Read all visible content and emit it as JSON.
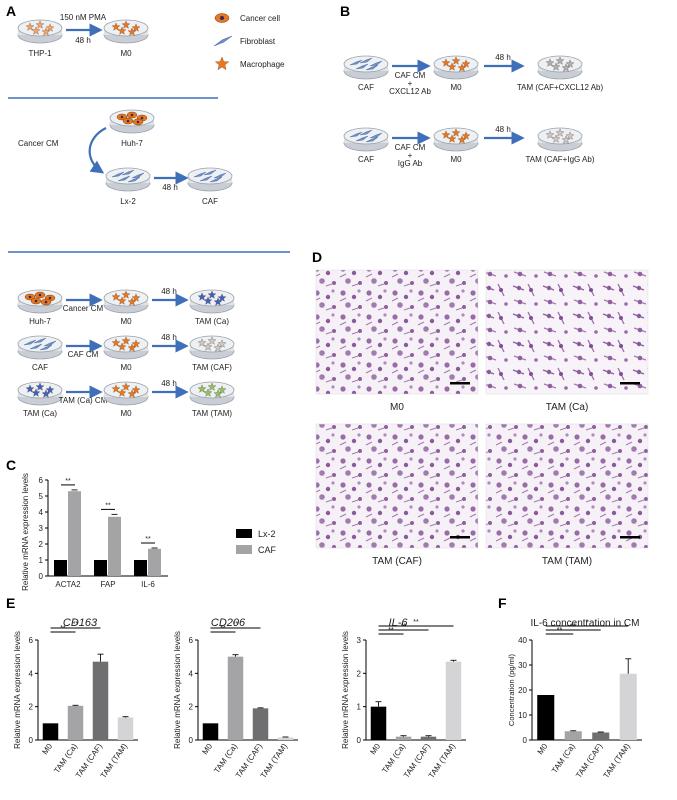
{
  "panels": [
    "A",
    "B",
    "C",
    "D",
    "E",
    "F"
  ],
  "legend_A": {
    "cancer": "Cancer cell",
    "fibro": "Fibroblast",
    "macro": "Macrophage"
  },
  "panelA": {
    "row1": {
      "from": "THP-1",
      "to": "M0",
      "arrow_top": "150 nM PMA",
      "arrow_bottom": "48 h"
    },
    "row2": {
      "top_dish": "Huh-7",
      "curve_label": "Cancer CM",
      "from": "Lx-2",
      "to": "CAF",
      "arrow_bottom": "48 h"
    },
    "rows": [
      {
        "src": "Huh-7",
        "cm": "Cancer CM",
        "mid": "M0",
        "time": "48 h",
        "out": "TAM (Ca)"
      },
      {
        "src": "CAF",
        "cm": "CAF CM",
        "mid": "M0",
        "time": "48 h",
        "out": "TAM (CAF)"
      },
      {
        "src": "TAM (Ca)",
        "cm": "TAM (Ca) CM",
        "mid": "M0",
        "time": "48 h",
        "out": "TAM (TAM)"
      }
    ]
  },
  "panelB": {
    "rows": [
      {
        "src": "CAF",
        "cm_lines": [
          "CAF CM",
          "+",
          "CXCL12 Ab"
        ],
        "mid": "M0",
        "time": "48 h",
        "out": "TAM (CAF+CXCL12 Ab)"
      },
      {
        "src": "CAF",
        "cm_lines": [
          "CAF CM",
          "+",
          "IgG Ab"
        ],
        "mid": "M0",
        "time": "48 h",
        "out": "TAM (CAF+IgG Ab)"
      }
    ]
  },
  "panelD": {
    "images": [
      "M0",
      "TAM (Ca)",
      "TAM (CAF)",
      "TAM (TAM)"
    ]
  },
  "colors": {
    "black": "#000000",
    "gray1": "#a7a7a9",
    "gray2": "#6d6d6f",
    "gray3": "#d0d0d2",
    "blue": "#3f6fb8",
    "orange": "#e87722",
    "stain": "#8f5f9e"
  },
  "chart_data": [
    {
      "id": "C",
      "type": "bar",
      "ylabel": "Relative mRNA expression levels",
      "categories": [
        "ACTA2",
        "FAP",
        "IL-6"
      ],
      "series": [
        {
          "name": "Lx-2",
          "values": [
            1,
            1,
            1
          ]
        },
        {
          "name": "CAF",
          "values": [
            5.3,
            3.7,
            1.7
          ]
        }
      ],
      "errors": [
        [
          0,
          0,
          0
        ],
        [
          0.08,
          0.15,
          0.05
        ]
      ],
      "ylim": [
        0,
        6
      ],
      "yticks": [
        0,
        1,
        2,
        3,
        4,
        5,
        6
      ],
      "significance": [
        "**",
        "**",
        "**"
      ],
      "legend": "right"
    },
    {
      "id": "E1",
      "type": "bar",
      "title": "CD163",
      "ylabel": "Relative mRNA expression levels",
      "categories": [
        "M0",
        "TAM (Ca)",
        "TAM (CAF)",
        "TAM (TAM)"
      ],
      "values": [
        1,
        2.05,
        4.7,
        1.35
      ],
      "errors": [
        0,
        0.03,
        0.45,
        0.05
      ],
      "ylim": [
        0,
        6
      ],
      "yticks": [
        0,
        2,
        4,
        6
      ],
      "significance": [
        {
          "a": 0,
          "b": 1,
          "label": "**"
        },
        {
          "a": 0,
          "b": 2,
          "label": "**"
        }
      ]
    },
    {
      "id": "E2",
      "type": "bar",
      "title": "CD206",
      "ylabel": "Relative mRNA expression levels",
      "categories": [
        "M0",
        "TAM (Ca)",
        "TAM (CAF)",
        "TAM (TAM)"
      ],
      "values": [
        1,
        5,
        1.9,
        0.15
      ],
      "errors": [
        0,
        0.12,
        0.03,
        0.03
      ],
      "ylim": [
        0,
        6
      ],
      "yticks": [
        0,
        2,
        4,
        6
      ],
      "significance": [
        {
          "a": 0,
          "b": 1,
          "label": "**"
        },
        {
          "a": 0,
          "b": 2,
          "label": "**"
        }
      ]
    },
    {
      "id": "E3",
      "type": "bar",
      "title": "IL-6",
      "ylabel": "Relative mRNA expression levels",
      "categories": [
        "M0",
        "TAM (Ca)",
        "TAM (CAF)",
        "TAM (TAM)"
      ],
      "values": [
        1,
        0.1,
        0.1,
        2.35
      ],
      "errors": [
        0.15,
        0.03,
        0.03,
        0.04
      ],
      "ylim": [
        0,
        3
      ],
      "yticks": [
        0,
        1,
        2,
        3
      ],
      "significance": [
        {
          "a": 0,
          "b": 1,
          "label": "**"
        },
        {
          "a": 0,
          "b": 2,
          "label": "**"
        },
        {
          "a": 0,
          "b": 3,
          "label": "**"
        }
      ]
    },
    {
      "id": "F",
      "type": "bar",
      "title": "IL-6 concentration in CM",
      "ylabel": "Concentration (pg/ml)",
      "categories": [
        "M0",
        "TAM (Ca)",
        "TAM (CAF)",
        "TAM (TAM)"
      ],
      "values": [
        18,
        3.5,
        3,
        26.5
      ],
      "errors": [
        0,
        0.2,
        0.2,
        6
      ],
      "ylim": [
        0,
        40
      ],
      "yticks": [
        0,
        10,
        20,
        30,
        40
      ],
      "significance": [
        {
          "a": 0,
          "b": 1,
          "label": "**"
        },
        {
          "a": 0,
          "b": 2,
          "label": "**"
        },
        {
          "a": 0,
          "b": 3,
          "label": "*"
        }
      ]
    }
  ]
}
